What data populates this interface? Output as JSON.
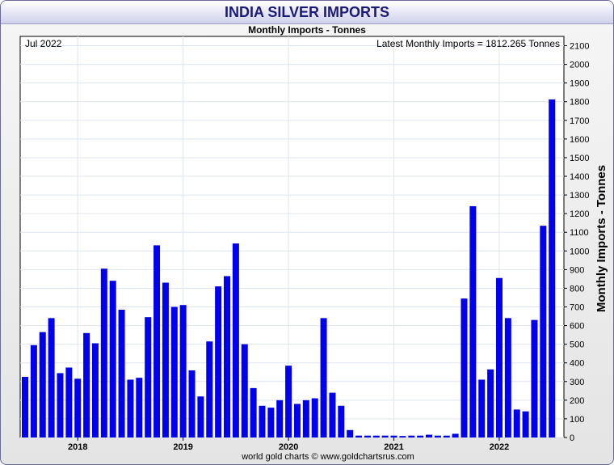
{
  "title": "INDIA SILVER IMPORTS",
  "subtitle": "Monthly Imports - Tonnes",
  "period_label": "Jul 2022",
  "latest_label": "Latest Monthly Imports = 1812.265 Tonnes",
  "footer": "world gold charts © www.goldchartsrus.com",
  "colors": {
    "bar": "#0000ee",
    "grid": "#dde6ef",
    "title": "#1a1a7a"
  },
  "chart_data": {
    "type": "bar",
    "title": "INDIA SILVER IMPORTS",
    "subtitle": "Monthly Imports - Tonnes",
    "ylabel": "Monthly Imports - Tonnes",
    "xlabel": "",
    "ylim": [
      0,
      2150
    ],
    "yticks": [
      0,
      100,
      200,
      300,
      400,
      500,
      600,
      700,
      800,
      900,
      1000,
      1100,
      1200,
      1300,
      1400,
      1500,
      1600,
      1700,
      1800,
      1900,
      2000,
      2100
    ],
    "year_ticks": [
      "2018",
      "2019",
      "2020",
      "2021",
      "2022"
    ],
    "grid": true,
    "categories": [
      "2017-07",
      "2017-08",
      "2017-09",
      "2017-10",
      "2017-11",
      "2017-12",
      "2018-01",
      "2018-02",
      "2018-03",
      "2018-04",
      "2018-05",
      "2018-06",
      "2018-07",
      "2018-08",
      "2018-09",
      "2018-10",
      "2018-11",
      "2018-12",
      "2019-01",
      "2019-02",
      "2019-03",
      "2019-04",
      "2019-05",
      "2019-06",
      "2019-07",
      "2019-08",
      "2019-09",
      "2019-10",
      "2019-11",
      "2019-12",
      "2020-01",
      "2020-02",
      "2020-03",
      "2020-04",
      "2020-05",
      "2020-06",
      "2020-07",
      "2020-08",
      "2020-09",
      "2020-10",
      "2020-11",
      "2020-12",
      "2021-01",
      "2021-02",
      "2021-03",
      "2021-04",
      "2021-05",
      "2021-06",
      "2021-07",
      "2021-08",
      "2021-09",
      "2021-10",
      "2021-11",
      "2021-12",
      "2022-01",
      "2022-02",
      "2022-03",
      "2022-04",
      "2022-05",
      "2022-06",
      "2022-07"
    ],
    "values": [
      325,
      495,
      565,
      640,
      345,
      375,
      315,
      560,
      505,
      905,
      840,
      685,
      310,
      320,
      645,
      1030,
      830,
      700,
      710,
      360,
      220,
      515,
      810,
      865,
      1040,
      500,
      265,
      170,
      160,
      200,
      385,
      180,
      200,
      210,
      640,
      240,
      170,
      40,
      10,
      10,
      10,
      10,
      10,
      8,
      10,
      10,
      15,
      10,
      10,
      20,
      745,
      1240,
      310,
      365,
      855,
      640,
      150,
      140,
      630,
      1135,
      1812.265
    ]
  }
}
